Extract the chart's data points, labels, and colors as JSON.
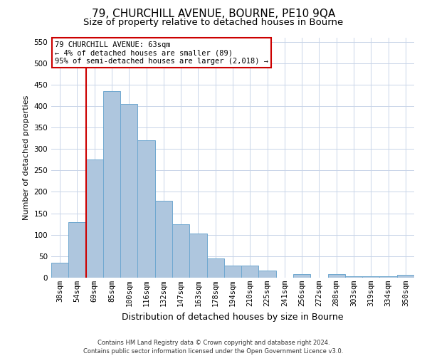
{
  "title": "79, CHURCHILL AVENUE, BOURNE, PE10 9QA",
  "subtitle": "Size of property relative to detached houses in Bourne",
  "xlabel": "Distribution of detached houses by size in Bourne",
  "ylabel": "Number of detached properties",
  "categories": [
    "38sqm",
    "54sqm",
    "69sqm",
    "85sqm",
    "100sqm",
    "116sqm",
    "132sqm",
    "147sqm",
    "163sqm",
    "178sqm",
    "194sqm",
    "210sqm",
    "225sqm",
    "241sqm",
    "256sqm",
    "272sqm",
    "288sqm",
    "303sqm",
    "319sqm",
    "334sqm",
    "350sqm"
  ],
  "values": [
    35,
    130,
    275,
    435,
    405,
    320,
    180,
    125,
    103,
    44,
    28,
    28,
    17,
    0,
    9,
    0,
    9,
    3,
    3,
    3,
    6
  ],
  "bar_color": "#aec6de",
  "bar_edge_color": "#6fa8d0",
  "vline_color": "#cc0000",
  "annotation_text": "79 CHURCHILL AVENUE: 63sqm\n← 4% of detached houses are smaller (89)\n95% of semi-detached houses are larger (2,018) →",
  "annotation_box_color": "#ffffff",
  "annotation_box_edge": "#cc0000",
  "ylim": [
    0,
    560
  ],
  "yticks": [
    0,
    50,
    100,
    150,
    200,
    250,
    300,
    350,
    400,
    450,
    500,
    550
  ],
  "footer_line1": "Contains HM Land Registry data © Crown copyright and database right 2024.",
  "footer_line2": "Contains public sector information licensed under the Open Government Licence v3.0.",
  "bg_color": "#ffffff",
  "grid_color": "#c8d4e8",
  "title_fontsize": 11,
  "subtitle_fontsize": 9.5,
  "xlabel_fontsize": 9,
  "ylabel_fontsize": 8,
  "tick_fontsize": 7.5,
  "annotation_fontsize": 7.5,
  "footer_fontsize": 6
}
